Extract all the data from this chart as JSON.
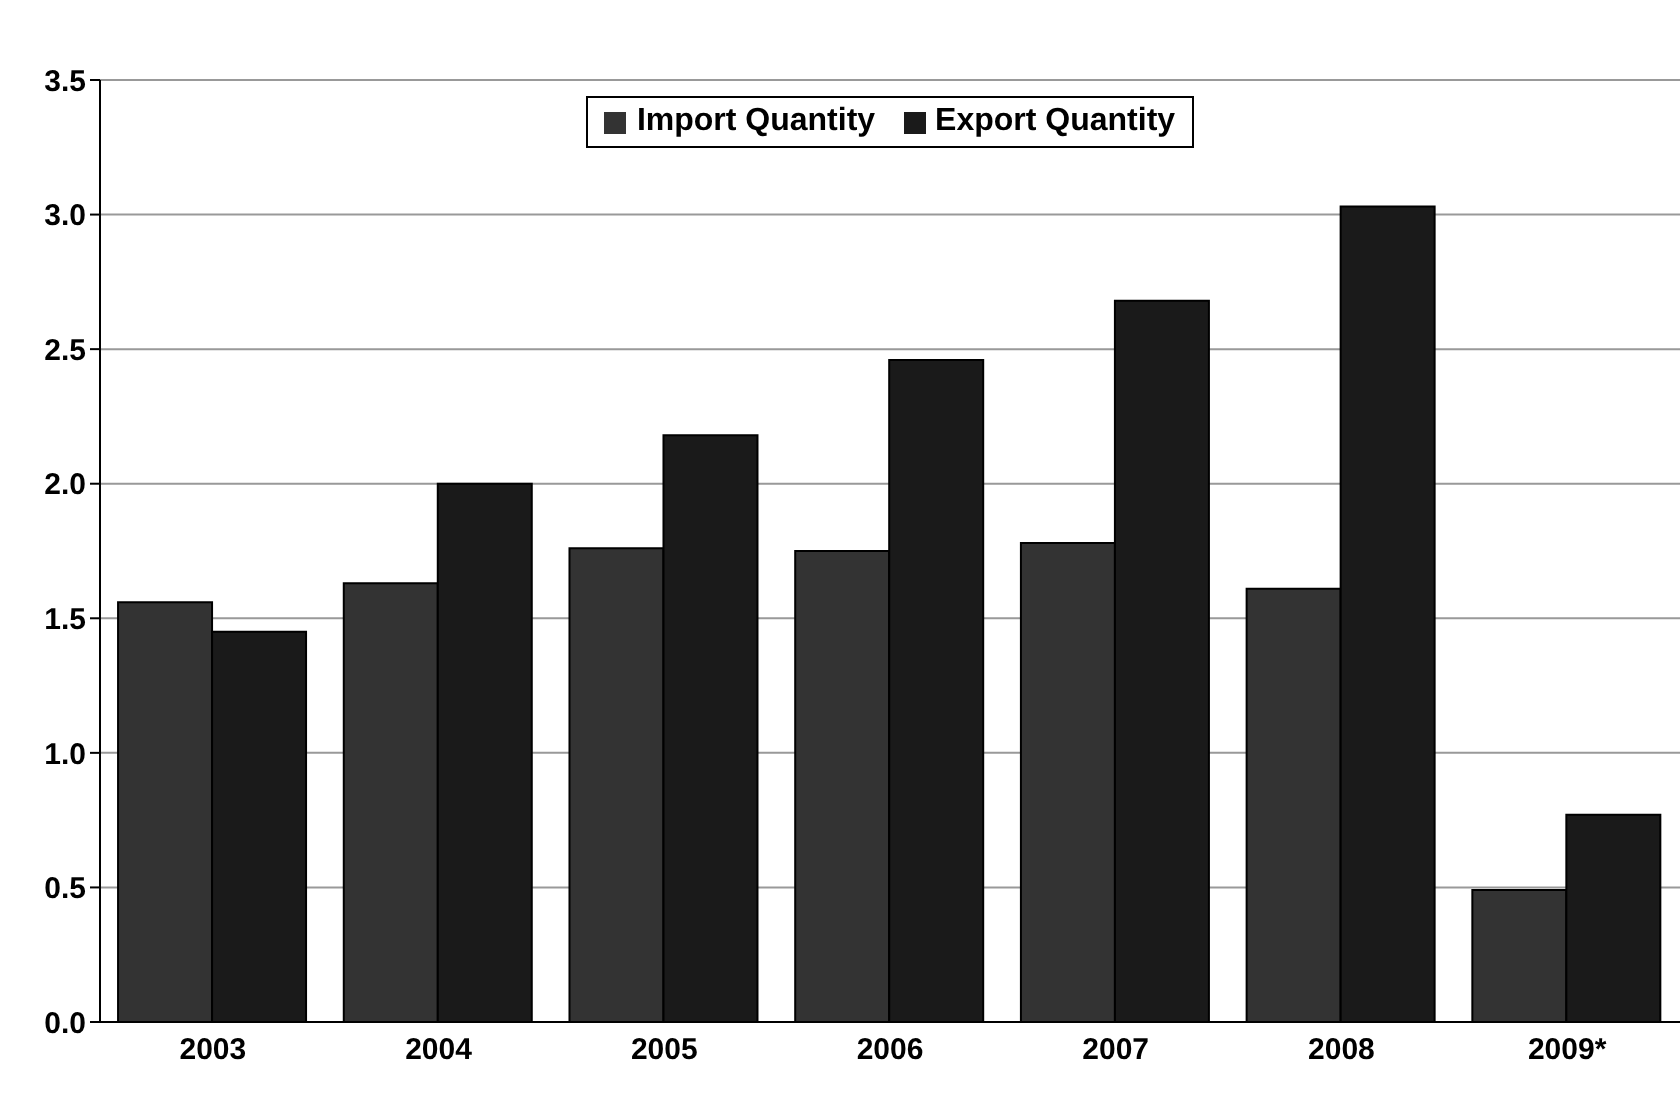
{
  "chart_data": {
    "type": "bar",
    "categories": [
      "2003",
      "2004",
      "2005",
      "2006",
      "2007",
      "2008",
      "2009*"
    ],
    "series": [
      {
        "name": "Import Quantity",
        "color": "#333333",
        "values": [
          1.56,
          1.63,
          1.76,
          1.75,
          1.78,
          1.61,
          0.49
        ]
      },
      {
        "name": "Export Quantity",
        "color": "#1a1a1a",
        "values": [
          1.45,
          2.0,
          2.18,
          2.46,
          2.68,
          3.03,
          0.77
        ]
      }
    ],
    "ylim": [
      0,
      3.5
    ],
    "yticks": [
      {
        "value": 0,
        "label": "0.0"
      },
      {
        "value": 0.5,
        "label": "0.5"
      },
      {
        "value": 1,
        "label": "1.0"
      },
      {
        "value": 1.5,
        "label": "1.5"
      },
      {
        "value": 2,
        "label": "2.0"
      },
      {
        "value": 2.5,
        "label": "2.5"
      },
      {
        "value": 3,
        "label": "3.0"
      },
      {
        "value": 3.5,
        "label": "3.5"
      }
    ],
    "grid": "y",
    "legend": "top"
  }
}
